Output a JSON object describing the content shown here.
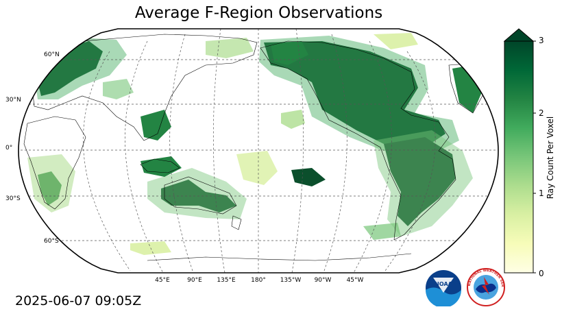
{
  "title": "Average F-Region Observations",
  "timestamp": "2025-06-07 09:05Z",
  "map": {
    "projection": "Robinson",
    "central_longitude": 180,
    "gridlines": true,
    "lat_labels": [
      "60°N",
      "30°N",
      "0°",
      "30°S",
      "60°S"
    ],
    "lon_labels": [
      "45°E",
      "90°E",
      "135°E",
      "180°",
      "135°W",
      "90°W",
      "45°W"
    ],
    "color_low": "#ffffe5",
    "color_high": "#004529"
  },
  "colorbar": {
    "label": "Ray Count Per Voxel",
    "ticks": [
      "0",
      "1",
      "2",
      "3"
    ],
    "min": 0,
    "max": 3,
    "extend": "max",
    "colors": [
      "#ffffe5",
      "#f7fcb9",
      "#d9f0a3",
      "#addd8e",
      "#78c679",
      "#41ab5d",
      "#238443",
      "#006837",
      "#004529"
    ]
  },
  "logos": {
    "noaa": "NOAA",
    "nws": "NATIONAL WEATHER SERVICE"
  }
}
